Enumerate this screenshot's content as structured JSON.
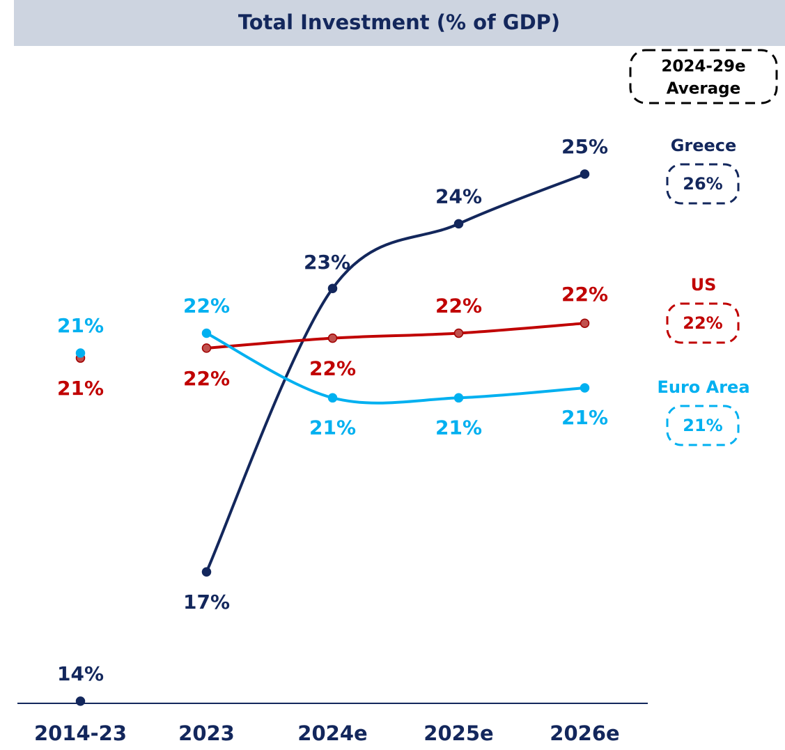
{
  "chart_data": {
    "type": "line",
    "title": "Total Investment (% of GDP)",
    "categories": [
      "2014-23",
      "2023",
      "2024e",
      "2025e",
      "2026e"
    ],
    "ylim": [
      13.6,
      26.4
    ],
    "series": [
      {
        "name": "Greece",
        "color": "#13275c",
        "values": [
          14.4,
          17.0,
          22.7,
          24.0,
          25.0
        ],
        "value_labels": [
          "14%",
          "17%",
          "23%",
          "24%",
          "25%"
        ],
        "average": 26,
        "average_label": "26%"
      },
      {
        "name": "US",
        "color": "#c00000",
        "values": [
          21.3,
          21.5,
          21.7,
          21.8,
          22.0
        ],
        "value_labels": [
          "21%",
          "22%",
          "22%",
          "22%",
          "22%"
        ],
        "average": 22,
        "average_label": "22%"
      },
      {
        "name": "Euro Area",
        "color": "#00b0f0",
        "values": [
          21.4,
          21.8,
          20.5,
          20.5,
          20.7
        ],
        "value_labels": [
          "21%",
          "22%",
          "21%",
          "21%",
          "21%"
        ],
        "average": 21,
        "average_label": "21%"
      }
    ],
    "average_title": [
      "2024-29e",
      "Average"
    ]
  }
}
